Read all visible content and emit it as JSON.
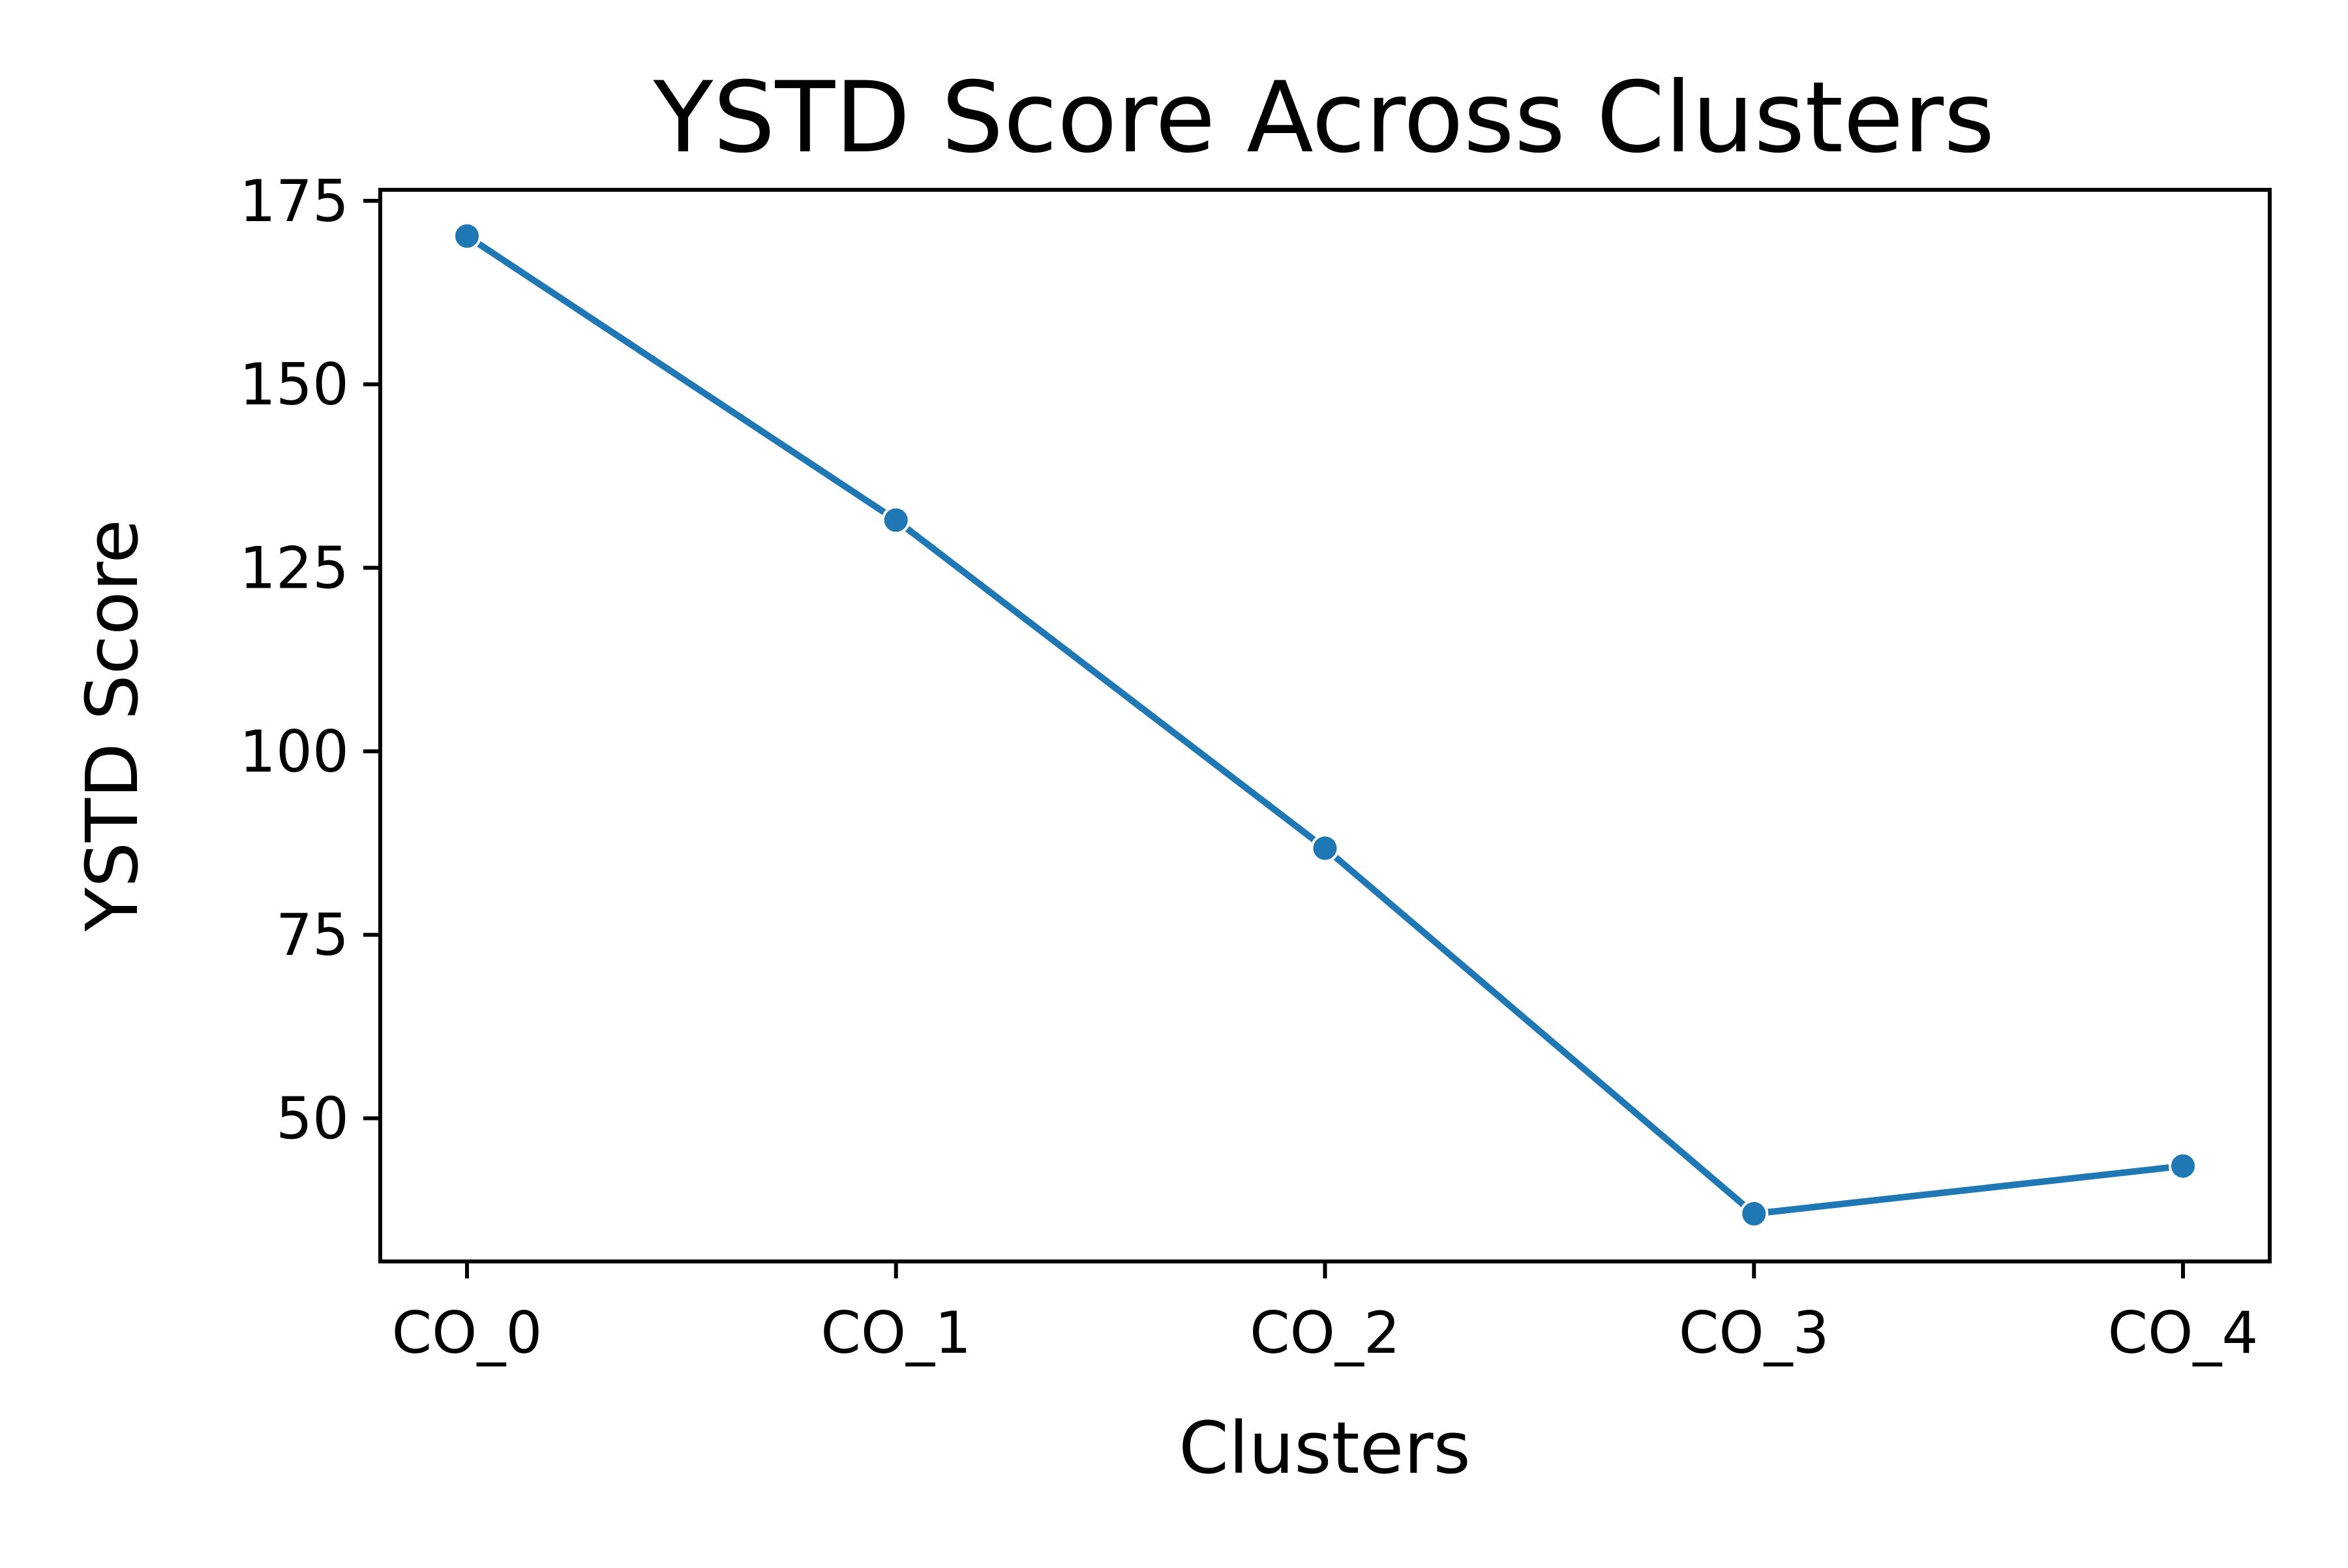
{
  "chart_data": {
    "type": "line",
    "title": "YSTD Score Across Clusters",
    "xlabel": "Clusters",
    "ylabel": "YSTD Score",
    "categories": [
      "CO_0",
      "CO_1",
      "CO_2",
      "CO_3",
      "CO_4"
    ],
    "series": [
      {
        "values": [
          170.2,
          131.5,
          86.8,
          37.0,
          43.5
        ],
        "color": "#1f77b4",
        "marker": "circle"
      }
    ],
    "ylim": [
      30.5,
      176.5
    ],
    "yticks": [
      50,
      75,
      100,
      125,
      150,
      175
    ],
    "ytick_labels": [
      "50",
      "75",
      "100",
      "125",
      "150",
      "175"
    ],
    "grid": false,
    "legend": "none"
  }
}
